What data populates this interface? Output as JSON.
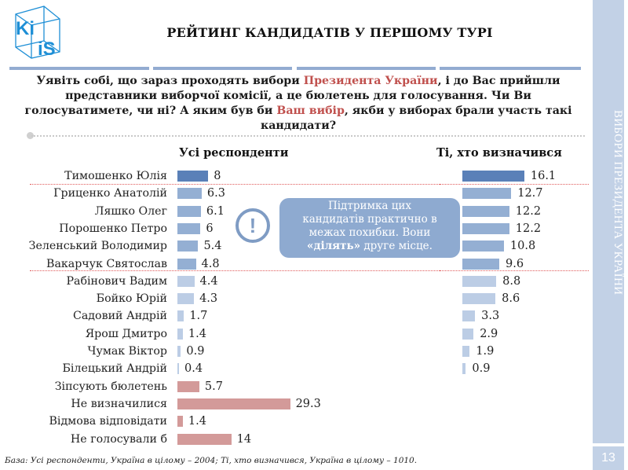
{
  "header": {
    "logo_text_top": "Ki",
    "logo_text_bottom": "iS",
    "title": "РЕЙТИНГ КАНДИДАТІВ У ПЕРШОМУ ТУРІ"
  },
  "sidebar": {
    "section_label": "ВИБОРИ ПРЕЗИДЕНТА УКРАЇНИ",
    "page_number": "13"
  },
  "question": {
    "part1": "Уявіть собі, що зараз проходять вибори ",
    "highlight1": "Президента України",
    "part2": ", і до Вас прийшли представники виборчої комісії, а це бюлетень для голосування. Чи Ви голосуватимете, чи ні? А яким був би ",
    "highlight2": "Ваш вибір",
    "part3": ", якби у виборах брали участь такі кандидати?"
  },
  "callout": {
    "line1": "Підтримка цих",
    "line2": "кандидатів практично в",
    "line3": "межах похибки. Вони",
    "bold": "«ділять»",
    "line4_rest": " друге місце.",
    "icon": "exclamation-circle-icon"
  },
  "footnote": "База: Усі респонденти, Україна в цілому – 2004; Ті, хто визначився, Україна в цілому – 1010.",
  "colors": {
    "leader_bar": "#5a80b8",
    "top_group_bar": "#94afd3",
    "other_bar": "#bccde5",
    "nonvote_bar": "#d39a99",
    "accent_red": "#c0504d",
    "rule": "#93acd1",
    "sidebar": "#c2d1e6"
  },
  "chart_data": [
    {
      "type": "bar",
      "orientation": "horizontal",
      "title": "Усі респонденти",
      "categories": [
        "Тимошенко Юлія",
        "Гриценко Анатолій",
        "Ляшко Олег",
        "Порошенко Петро",
        "Зеленський Володимир",
        "Вакарчук Святослав",
        "Рабінович Вадим",
        "Бойко Юрій",
        "Садовий Андрій",
        "Ярош Дмитро",
        "Чумак Віктор",
        "Білецький Андрій",
        "Зіпсують бюлетень",
        "Не визначилися",
        "Відмова відповідати",
        "Не голосували б"
      ],
      "values": [
        8,
        6.3,
        6.1,
        6,
        5.4,
        4.8,
        4.4,
        4.3,
        1.7,
        1.4,
        0.9,
        0.4,
        5.7,
        29.3,
        1.4,
        14
      ],
      "value_labels": [
        "8",
        "6.3",
        "6.1",
        "6",
        "5.4",
        "4.8",
        "4.4",
        "4.3",
        "1.7",
        "1.4",
        "0.9",
        "0.4",
        "5.7",
        "29.3",
        "1.4",
        "14"
      ],
      "xlabel": "",
      "ylabel": "",
      "unit": "%",
      "grid": false,
      "legend": "none"
    },
    {
      "type": "bar",
      "orientation": "horizontal",
      "title": "Ті, хто визначився",
      "categories": [
        "Тимошенко Юлія",
        "Гриценко Анатолій",
        "Ляшко Олег",
        "Порошенко Петро",
        "Зеленський Володимир",
        "Вакарчук Святослав",
        "Рабінович Вадим",
        "Бойко Юрій",
        "Садовий Андрій",
        "Ярош Дмитро",
        "Чумак Віктор",
        "Білецький Андрій"
      ],
      "values": [
        16.1,
        12.7,
        12.2,
        12.2,
        10.8,
        9.6,
        8.8,
        8.6,
        3.3,
        2.9,
        1.9,
        0.9
      ],
      "value_labels": [
        "16.1",
        "12.7",
        "12.2",
        "12.2",
        "10.8",
        "9.6",
        "8.8",
        "8.6",
        "3.3",
        "2.9",
        "1.9",
        "0.9"
      ],
      "xlabel": "",
      "ylabel": "",
      "unit": "%",
      "grid": false,
      "legend": "none"
    }
  ]
}
